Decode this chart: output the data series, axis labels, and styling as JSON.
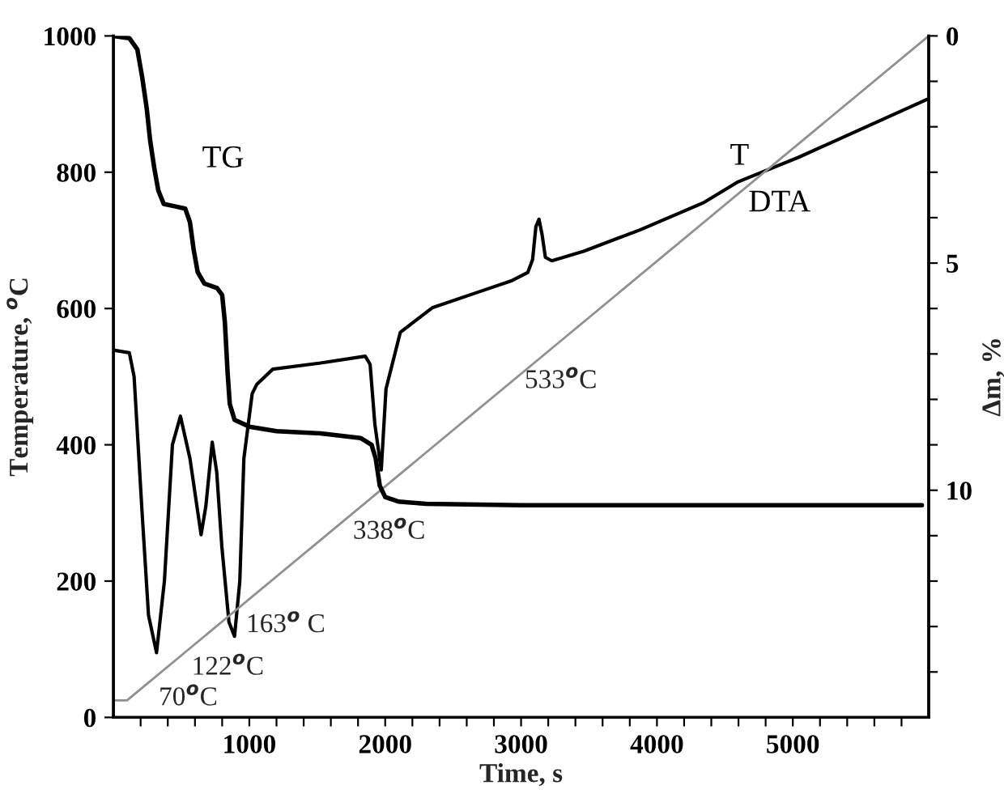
{
  "chart_data": {
    "type": "line",
    "xlabel": "Time, s",
    "ylabel": "Temperature, $^{o}$C",
    "y2label": "Δm, %",
    "xlim": [
      0,
      6000
    ],
    "xticks": [
      {
        "value": 200,
        "label": null
      },
      {
        "value": 400,
        "label": null
      },
      {
        "value": 600,
        "label": null
      },
      {
        "value": 800,
        "label": null
      },
      1000,
      {
        "value": 1200,
        "label": null
      },
      {
        "value": 1400,
        "label": null
      },
      {
        "value": 1600,
        "label": null
      },
      {
        "value": 1800,
        "label": null
      },
      2000,
      {
        "value": 2200,
        "label": null
      },
      {
        "value": 2400,
        "label": null
      },
      {
        "value": 2600,
        "label": null
      },
      {
        "value": 2800,
        "label": null
      },
      3000,
      {
        "value": 3200,
        "label": null
      },
      {
        "value": 3400,
        "label": null
      },
      {
        "value": 3600,
        "label": null
      },
      {
        "value": 3800,
        "label": null
      },
      4000,
      {
        "value": 4200,
        "label": null
      },
      {
        "value": 4400,
        "label": null
      },
      {
        "value": 4600,
        "label": null
      },
      {
        "value": 4800,
        "label": null
      },
      5000,
      {
        "value": 5200,
        "label": null
      },
      {
        "value": 5400,
        "label": null
      },
      {
        "value": 5600,
        "label": null
      },
      {
        "value": 5800,
        "label": null
      }
    ],
    "ylim": [
      0,
      1000
    ],
    "yticks": [
      0,
      200,
      400,
      600,
      800,
      1000
    ],
    "y2lim": [
      15,
      0
    ],
    "y2ticks": [
      0,
      {
        "value": 1,
        "label": null
      },
      {
        "value": 2,
        "label": null
      },
      {
        "value": 3,
        "label": null
      },
      {
        "value": 4,
        "label": null
      },
      5,
      {
        "value": 6,
        "label": null
      },
      {
        "value": 7,
        "label": null
      },
      {
        "value": 8,
        "label": null
      },
      {
        "value": 9,
        "label": null
      },
      10,
      {
        "value": 11,
        "label": null
      },
      {
        "value": 12,
        "label": null
      },
      {
        "value": 13,
        "label": null
      },
      {
        "value": 14,
        "label": null
      }
    ],
    "series": [
      {
        "name": "TG",
        "color": "#000000",
        "axis": "y2",
        "x": [
          0,
          117,
          176,
          211,
          245,
          270,
          300,
          330,
          370,
          450,
          528,
          563,
          590,
          620,
          669,
          762,
          800,
          820,
          840,
          856,
          891,
          1000,
          1200,
          1525,
          1818,
          1900,
          1930,
          1960,
          2000,
          2100,
          2300,
          3000,
          5950
        ],
        "values": [
          0,
          0.05,
          0.3,
          0.9,
          1.6,
          2.3,
          2.9,
          3.4,
          3.7,
          3.75,
          3.8,
          4.1,
          4.7,
          5.2,
          5.45,
          5.55,
          5.7,
          6.3,
          7.4,
          8.1,
          8.45,
          8.6,
          8.7,
          8.75,
          8.85,
          9.0,
          9.3,
          9.9,
          10.15,
          10.25,
          10.3,
          10.33,
          10.33
        ]
      },
      {
        "name": "DTA",
        "color": "#000000",
        "x": [
          0,
          117,
          152,
          211,
          258,
          317,
          375,
          434,
          493,
          563,
          645,
          680,
          727,
          760,
          798,
          850,
          891,
          930,
          960,
          1021,
          1056,
          1173,
          1525,
          1853,
          1889,
          1924,
          1971,
          2006,
          2111,
          2346,
          2698,
          2933,
          3050,
          3085,
          3109,
          3132,
          3155,
          3179,
          3226,
          3460,
          3871,
          4340,
          4598,
          5044,
          5990
        ],
        "values": [
          539,
          535,
          500,
          300,
          150,
          95,
          200,
          400,
          442,
          380,
          268,
          310,
          404,
          360,
          250,
          140,
          119,
          200,
          380,
          475,
          489,
          511,
          520,
          530,
          518,
          430,
          363,
          482,
          565,
          601,
          625,
          641,
          653,
          672,
          720,
          731,
          708,
          675,
          670,
          684,
          715,
          755,
          786,
          822,
          907
        ]
      },
      {
        "name": "T",
        "color": "#909090",
        "x": [
          0,
          100,
          6000
        ],
        "values": [
          25,
          25,
          1000
        ]
      }
    ],
    "annotations": [
      {
        "text": "70$^{o}$C",
        "x": 372,
        "y": 70
      },
      {
        "text": "122$^{o}$C",
        "x": 687,
        "y": 122
      },
      {
        "text": "163$^{o}$ C",
        "x": 935,
        "y": 163
      },
      {
        "text": "338$^{o}$C",
        "x": 1994,
        "y": 338
      },
      {
        "text": "533$^{o}$C",
        "x": 3174,
        "y": 533
      }
    ]
  }
}
